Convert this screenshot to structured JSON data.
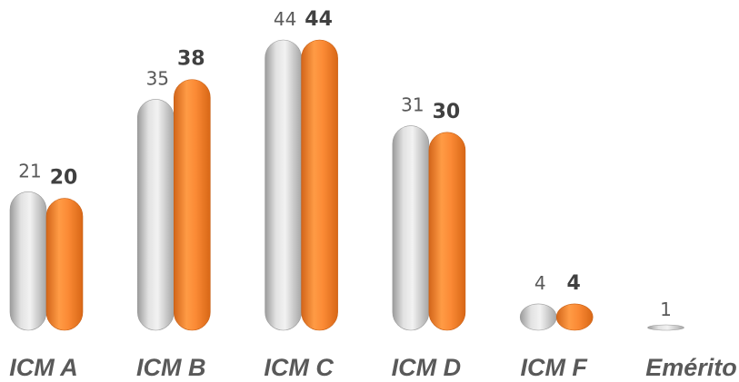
{
  "chart_data": {
    "type": "bar",
    "categories": [
      "ICM A",
      "ICM B",
      "ICM C",
      "ICM D",
      "ICM F",
      "Emérito"
    ],
    "series": [
      {
        "values": [
          21,
          35,
          44,
          31,
          4,
          1
        ],
        "color": "#c8c8c8",
        "label_style": "normal"
      },
      {
        "values": [
          20,
          38,
          44,
          30,
          4,
          null
        ],
        "color": "#f07e26",
        "label_style": "bold"
      }
    ],
    "ylim": [
      0,
      44
    ],
    "grid": false,
    "legend": "none"
  }
}
